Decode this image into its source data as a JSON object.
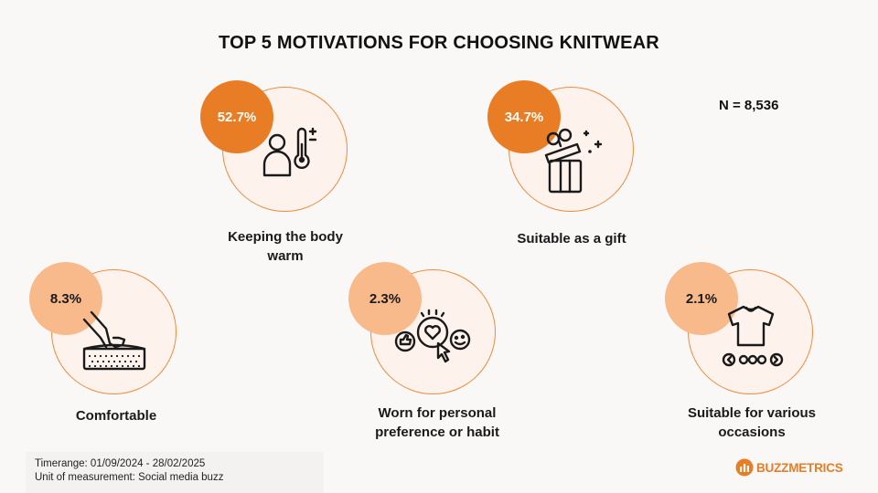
{
  "title": "TOP 5 MOTIVATIONS FOR CHOOSING KNITWEAR",
  "sample_size": "N = 8,536",
  "footer": {
    "timerange": "Timerange: 01/09/2024 - 28/02/2025",
    "unit": "Unit of measurement: Social media buzz"
  },
  "logo": {
    "part1": "BUZZ",
    "part2": "METRICS"
  },
  "colors": {
    "accent_dark": "#e87d25",
    "accent_light": "#f8b98b",
    "circle_fill": "#fdf3ec"
  },
  "chart_data": {
    "type": "table",
    "title": "TOP 5 MOTIVATIONS FOR CHOOSING KNITWEAR",
    "categories": [
      "Keeping the body warm",
      "Suitable as a gift",
      "Comfortable",
      "Worn for personal preference or habit",
      "Suitable for various occasions"
    ],
    "values": [
      52.7,
      34.7,
      8.3,
      2.3,
      2.1
    ],
    "value_labels": [
      "52.7%",
      "34.7%",
      "8.3%",
      "2.3%",
      "2.1%"
    ],
    "label_lines": [
      [
        "Keeping the body",
        "warm"
      ],
      [
        "Suitable as a gift"
      ],
      [
        "Comfortable"
      ],
      [
        "Worn for personal",
        "preference or habit"
      ],
      [
        "Suitable for various",
        "occasions"
      ]
    ],
    "icons": [
      "person-thermometer-icon",
      "gift-box-icon",
      "hand-pressing-cushion-icon",
      "heart-like-emoji-icon",
      "tshirt-carousel-icon"
    ]
  }
}
